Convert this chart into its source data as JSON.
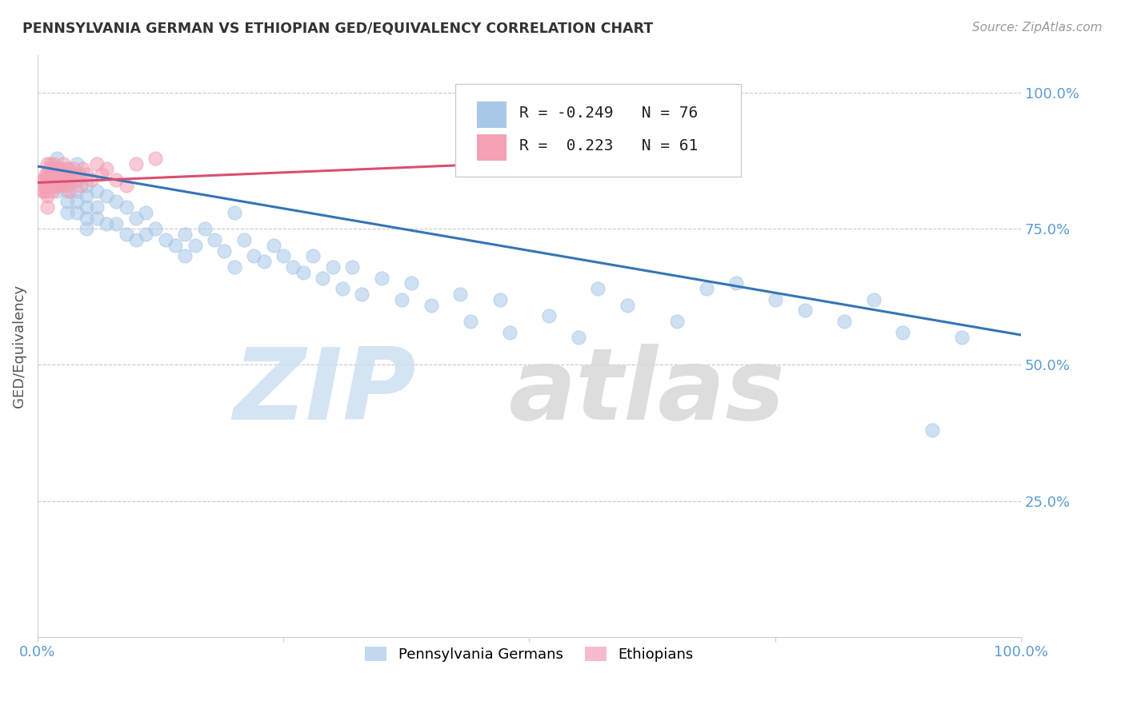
{
  "title": "PENNSYLVANIA GERMAN VS ETHIOPIAN GED/EQUIVALENCY CORRELATION CHART",
  "source": "Source: ZipAtlas.com",
  "ylabel": "GED/Equivalency",
  "blue_label": "Pennsylvania Germans",
  "pink_label": "Ethiopians",
  "blue_R": -0.249,
  "blue_N": 76,
  "pink_R": 0.223,
  "pink_N": 61,
  "blue_color": "#a8c8e8",
  "pink_color": "#f4a0b5",
  "blue_line_color": "#3575b5",
  "pink_line_color": "#d94f70",
  "background_color": "#ffffff",
  "grid_color": "#c8c8c8",
  "right_tick_color": "#5b9bd5",
  "title_color": "#333333",
  "source_color": "#999999",
  "watermark_zip_color": "#cde0f0",
  "watermark_atlas_color": "#d8d8d8",
  "blue_x": [
    0.02,
    0.02,
    0.03,
    0.03,
    0.03,
    0.03,
    0.03,
    0.04,
    0.04,
    0.04,
    0.04,
    0.04,
    0.05,
    0.05,
    0.05,
    0.05,
    0.05,
    0.06,
    0.06,
    0.06,
    0.07,
    0.07,
    0.08,
    0.08,
    0.09,
    0.09,
    0.1,
    0.1,
    0.11,
    0.11,
    0.12,
    0.13,
    0.14,
    0.15,
    0.15,
    0.16,
    0.17,
    0.18,
    0.19,
    0.2,
    0.2,
    0.21,
    0.22,
    0.23,
    0.24,
    0.25,
    0.26,
    0.27,
    0.28,
    0.29,
    0.3,
    0.31,
    0.32,
    0.33,
    0.35,
    0.37,
    0.38,
    0.4,
    0.43,
    0.44,
    0.47,
    0.48,
    0.52,
    0.55,
    0.57,
    0.6,
    0.65,
    0.68,
    0.71,
    0.75,
    0.78,
    0.82,
    0.85,
    0.88,
    0.91,
    0.94
  ],
  "blue_y": [
    0.88,
    0.82,
    0.86,
    0.84,
    0.82,
    0.8,
    0.78,
    0.87,
    0.84,
    0.82,
    0.8,
    0.78,
    0.83,
    0.81,
    0.79,
    0.77,
    0.75,
    0.82,
    0.79,
    0.77,
    0.81,
    0.76,
    0.8,
    0.76,
    0.79,
    0.74,
    0.77,
    0.73,
    0.78,
    0.74,
    0.75,
    0.73,
    0.72,
    0.74,
    0.7,
    0.72,
    0.75,
    0.73,
    0.71,
    0.78,
    0.68,
    0.73,
    0.7,
    0.69,
    0.72,
    0.7,
    0.68,
    0.67,
    0.7,
    0.66,
    0.68,
    0.64,
    0.68,
    0.63,
    0.66,
    0.62,
    0.65,
    0.61,
    0.63,
    0.58,
    0.62,
    0.56,
    0.59,
    0.55,
    0.64,
    0.61,
    0.58,
    0.64,
    0.65,
    0.62,
    0.6,
    0.58,
    0.62,
    0.56,
    0.38,
    0.55
  ],
  "pink_x": [
    0.005,
    0.005,
    0.007,
    0.007,
    0.008,
    0.008,
    0.009,
    0.009,
    0.01,
    0.01,
    0.01,
    0.01,
    0.01,
    0.012,
    0.012,
    0.013,
    0.013,
    0.013,
    0.015,
    0.015,
    0.015,
    0.016,
    0.016,
    0.016,
    0.017,
    0.017,
    0.018,
    0.018,
    0.019,
    0.019,
    0.02,
    0.02,
    0.021,
    0.022,
    0.022,
    0.023,
    0.024,
    0.025,
    0.025,
    0.026,
    0.027,
    0.028,
    0.03,
    0.031,
    0.032,
    0.033,
    0.035,
    0.037,
    0.04,
    0.042,
    0.044,
    0.046,
    0.05,
    0.055,
    0.06,
    0.065,
    0.07,
    0.08,
    0.09,
    0.1,
    0.12
  ],
  "pink_y": [
    0.84,
    0.82,
    0.84,
    0.82,
    0.85,
    0.83,
    0.84,
    0.82,
    0.87,
    0.85,
    0.83,
    0.81,
    0.79,
    0.86,
    0.84,
    0.87,
    0.85,
    0.83,
    0.86,
    0.84,
    0.82,
    0.87,
    0.85,
    0.83,
    0.86,
    0.84,
    0.85,
    0.83,
    0.86,
    0.84,
    0.85,
    0.83,
    0.86,
    0.85,
    0.83,
    0.84,
    0.86,
    0.85,
    0.83,
    0.87,
    0.84,
    0.85,
    0.83,
    0.86,
    0.84,
    0.82,
    0.85,
    0.86,
    0.84,
    0.85,
    0.83,
    0.86,
    0.85,
    0.84,
    0.87,
    0.85,
    0.86,
    0.84,
    0.83,
    0.87,
    0.88
  ],
  "blue_line_x0": 0.0,
  "blue_line_x1": 1.0,
  "blue_line_y0": 0.865,
  "blue_line_y1": 0.555,
  "pink_line_x0": 0.0,
  "pink_line_x1": 0.47,
  "pink_line_y0": 0.835,
  "pink_line_y1": 0.87,
  "xlim": [
    0.0,
    1.0
  ],
  "ylim": [
    0.0,
    1.07
  ],
  "ytick_positions": [
    0.25,
    0.5,
    0.75,
    1.0
  ],
  "ytick_labels": [
    "25.0%",
    "50.0%",
    "75.0%",
    "100.0%"
  ],
  "xtick_left_label": "0.0%",
  "xtick_right_label": "100.0%"
}
